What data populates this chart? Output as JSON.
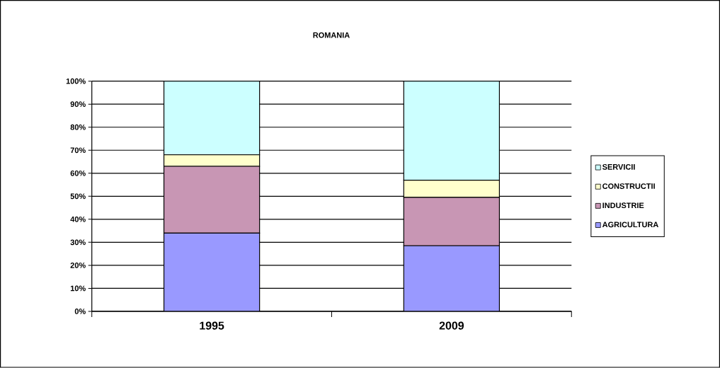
{
  "chart_data": {
    "type": "bar",
    "stacked": true,
    "title": "ROMANIA",
    "categories": [
      "1995",
      "2009"
    ],
    "series": [
      {
        "name": "AGRICULTURA",
        "color": "#9999ff",
        "values": [
          34,
          28.5
        ]
      },
      {
        "name": "INDUSTRIE",
        "color": "#c896b4",
        "values": [
          29,
          21
        ]
      },
      {
        "name": "CONSTRUCTII",
        "color": "#ffffcc",
        "values": [
          5,
          7.5
        ]
      },
      {
        "name": "SERVICII",
        "color": "#ccffff",
        "values": [
          32,
          43
        ]
      }
    ],
    "ylim": [
      0,
      100
    ],
    "yticks": [
      {
        "value": 0,
        "label": "0%"
      },
      {
        "value": 10,
        "label": "10%"
      },
      {
        "value": 20,
        "label": "20%"
      },
      {
        "value": 30,
        "label": "30%"
      },
      {
        "value": 40,
        "label": "40%"
      },
      {
        "value": 50,
        "label": "50%"
      },
      {
        "value": 60,
        "label": "60%"
      },
      {
        "value": 70,
        "label": "70%"
      },
      {
        "value": 80,
        "label": "80%"
      },
      {
        "value": 90,
        "label": "90%"
      },
      {
        "value": 100,
        "label": "100%"
      }
    ],
    "grid": "y",
    "legend": "right"
  }
}
